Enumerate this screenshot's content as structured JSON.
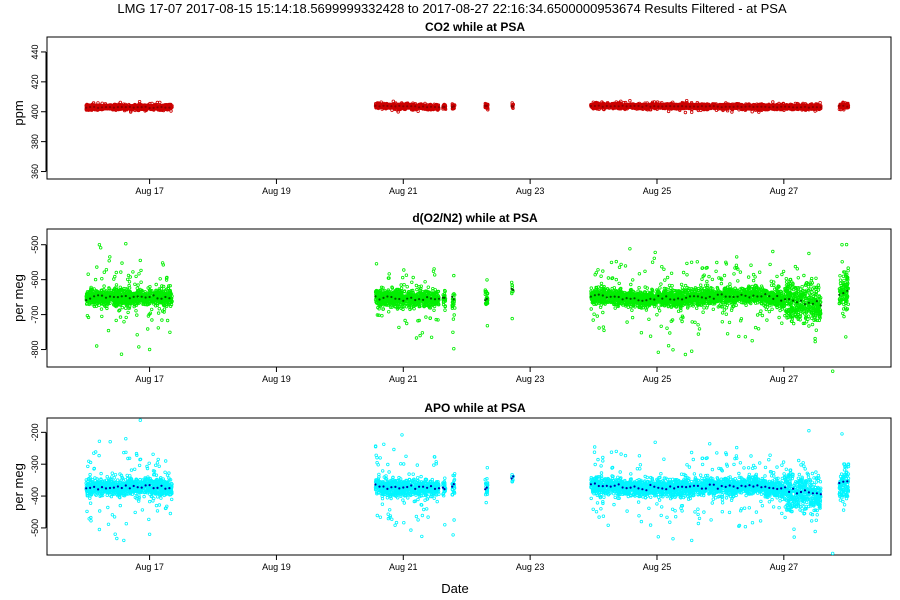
{
  "header": {
    "title": "LMG   17-07    2017-08-15 15:14:18.5699999332428 to 2017-08-27 22:16:34.6500000953674    Results Filtered - at PSA"
  },
  "x_axis": {
    "label": "Date",
    "range": [
      "2017-08-15 15:14",
      "2017-08-28 10:30"
    ],
    "ticks": [
      "Aug 17",
      "Aug 19",
      "Aug 21",
      "Aug 23",
      "Aug 25",
      "Aug 27"
    ],
    "tick_dates": [
      "2017-08-17",
      "2017-08-19",
      "2017-08-21",
      "2017-08-23",
      "2017-08-25",
      "2017-08-27"
    ]
  },
  "data_segments": [
    {
      "start": "2017-08-16 00:00",
      "end": "2017-08-17 08:30",
      "kind": "main"
    },
    {
      "start": "2017-08-20 13:30",
      "end": "2017-08-21 13:30",
      "kind": "main"
    },
    {
      "start": "2017-08-21 15:00",
      "end": "2017-08-21 16:00",
      "kind": "small"
    },
    {
      "start": "2017-08-21 18:30",
      "end": "2017-08-21 19:30",
      "kind": "small"
    },
    {
      "start": "2017-08-22 07:00",
      "end": "2017-08-22 08:00",
      "kind": "small"
    },
    {
      "start": "2017-08-22 17:00",
      "end": "2017-08-22 17:40",
      "kind": "point"
    },
    {
      "start": "2017-08-23 23:00",
      "end": "2017-08-27 14:00",
      "kind": "main"
    },
    {
      "start": "2017-08-27 21:00",
      "end": "2017-08-28 00:30",
      "kind": "main"
    }
  ],
  "chart_data": [
    {
      "type": "scatter",
      "title": "CO2 while at PSA",
      "xlabel": "",
      "ylabel": "ppm",
      "ylim": [
        355,
        450
      ],
      "yticks": [
        360,
        380,
        400,
        420,
        440
      ],
      "color": "#cc0000",
      "dark_color": "#8b0000",
      "series": [
        {
          "values": [
            {
              "x": "2017-08-16 00:00",
              "y": 403
            },
            {
              "x": "2017-08-17 08:30",
              "y": 403
            },
            {
              "x": "2017-08-20 13:30",
              "y": 404
            },
            {
              "x": "2017-08-21 13:30",
              "y": 403
            },
            {
              "x": "2017-08-22 07:00",
              "y": 404
            },
            {
              "x": "2017-08-22 17:00",
              "y": 404
            },
            {
              "x": "2017-08-23 23:00",
              "y": 404
            },
            {
              "x": "2017-08-27 14:00",
              "y": 403
            },
            {
              "x": "2017-08-28 00:30",
              "y": 404
            }
          ]
        }
      ],
      "spread": 0.8,
      "outlier_spread": 1.5,
      "grid": false
    },
    {
      "type": "scatter",
      "title": "d(O2/N2) while at PSA",
      "xlabel": "",
      "ylabel": "per meg",
      "ylim": [
        -850,
        -455
      ],
      "yticks": [
        -800,
        -700,
        -600,
        -500
      ],
      "color": "#00ee00",
      "dark_color": "#005500",
      "series": [
        {
          "values": [
            {
              "x": "2017-08-16 00:00",
              "y": -650
            },
            {
              "x": "2017-08-17 08:30",
              "y": -650
            },
            {
              "x": "2017-08-20 13:30",
              "y": -650
            },
            {
              "x": "2017-08-21 13:30",
              "y": -655
            },
            {
              "x": "2017-08-22 07:00",
              "y": -655
            },
            {
              "x": "2017-08-22 17:00",
              "y": -625
            },
            {
              "x": "2017-08-23 23:00",
              "y": -645
            },
            {
              "x": "2017-08-24 18:00",
              "y": -655
            },
            {
              "x": "2017-08-26 12:00",
              "y": -645
            },
            {
              "x": "2017-08-27 14:00",
              "y": -670
            },
            {
              "x": "2017-08-28 00:30",
              "y": -630
            }
          ]
        }
      ],
      "spread": 12,
      "outlier_spread": 60,
      "extremes": [
        {
          "x": "2017-08-16 05:00",
          "y": -500
        },
        {
          "x": "2017-08-16 15:00",
          "y": -497
        },
        {
          "x": "2017-08-16 04:00",
          "y": -790
        },
        {
          "x": "2017-08-16 20:30",
          "y": -545
        },
        {
          "x": "2017-08-17 00:00",
          "y": -800
        },
        {
          "x": "2017-08-25 00:30",
          "y": -808
        },
        {
          "x": "2017-08-27 09:30",
          "y": -525
        },
        {
          "x": "2017-08-27 18:30",
          "y": -862
        },
        {
          "x": "2017-08-27 22:00",
          "y": -500
        }
      ],
      "grid": false
    },
    {
      "type": "scatter",
      "title": "APO while at PSA",
      "xlabel": "Date",
      "ylabel": "per meg",
      "ylim": [
        -585,
        -155
      ],
      "yticks": [
        -500,
        -400,
        -300,
        -200
      ],
      "color": "#00f5ff",
      "dark_color": "#0000aa",
      "series": [
        {
          "values": [
            {
              "x": "2017-08-16 00:00",
              "y": -372
            },
            {
              "x": "2017-08-17 08:30",
              "y": -372
            },
            {
              "x": "2017-08-20 13:30",
              "y": -372
            },
            {
              "x": "2017-08-21 13:30",
              "y": -375
            },
            {
              "x": "2017-08-22 07:00",
              "y": -372
            },
            {
              "x": "2017-08-22 17:00",
              "y": -345
            },
            {
              "x": "2017-08-23 23:00",
              "y": -365
            },
            {
              "x": "2017-08-24 18:00",
              "y": -375
            },
            {
              "x": "2017-08-26 12:00",
              "y": -368
            },
            {
              "x": "2017-08-27 14:00",
              "y": -395
            },
            {
              "x": "2017-08-28 00:30",
              "y": -350
            }
          ]
        }
      ],
      "spread": 13,
      "outlier_spread": 65,
      "extremes": [
        {
          "x": "2017-08-16 05:00",
          "y": -228
        },
        {
          "x": "2017-08-16 15:00",
          "y": -220
        },
        {
          "x": "2017-08-16 05:00",
          "y": -505
        },
        {
          "x": "2017-08-16 20:30",
          "y": -162
        },
        {
          "x": "2017-08-17 00:00",
          "y": -520
        },
        {
          "x": "2017-08-25 00:30",
          "y": -528
        },
        {
          "x": "2017-08-27 09:30",
          "y": -195
        },
        {
          "x": "2017-08-27 18:30",
          "y": -580
        },
        {
          "x": "2017-08-27 22:00",
          "y": -205
        }
      ],
      "grid": false
    }
  ]
}
